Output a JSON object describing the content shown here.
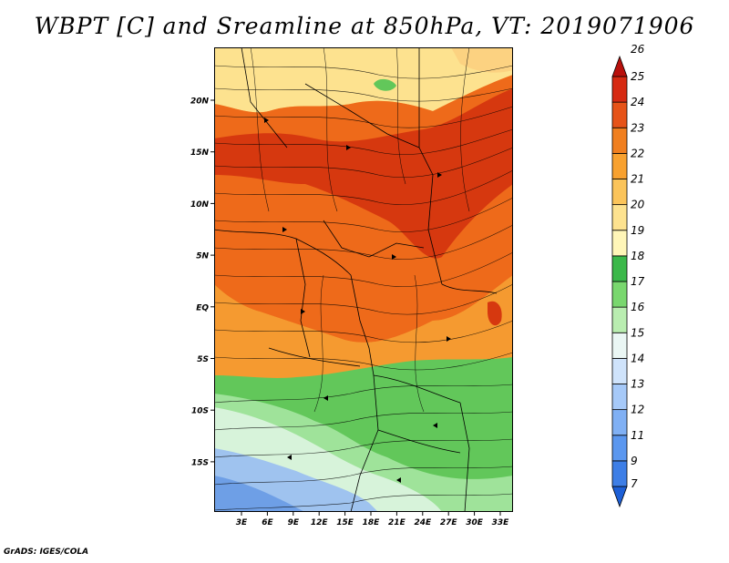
{
  "title": "WBPT [C] and Sreamline at 850hPa, VT: 2019071906",
  "footer": "GrADS: IGES/COLA",
  "lat_labels": [
    "20N",
    "15N",
    "10N",
    "5N",
    "EQ",
    "5S",
    "10S",
    "15S"
  ],
  "lon_labels": [
    "3E",
    "6E",
    "9E",
    "12E",
    "15E",
    "18E",
    "21E",
    "24E",
    "27E",
    "30E",
    "33E"
  ],
  "colorbar": {
    "labels": [
      "7",
      "9",
      "11",
      "12",
      "13",
      "14",
      "15",
      "16",
      "17",
      "18",
      "19",
      "20",
      "21",
      "22",
      "23",
      "24",
      "25",
      "26"
    ],
    "colors": [
      "#1d5fd6",
      "#3d7ee6",
      "#5b97ef",
      "#80b0f4",
      "#a6c9f8",
      "#cfe3fb",
      "#eaf6f4",
      "#b9edb0",
      "#79d76e",
      "#3bb84a",
      "#fff6b8",
      "#fde28f",
      "#fbc45a",
      "#f8a12f",
      "#f07f1f",
      "#e65318",
      "#d62a12",
      "#b8100c"
    ]
  },
  "field_colors": {
    "hot": "#d6380f",
    "warm": "#ee6a1a",
    "mild": "#f59a30",
    "tan": "#fcd281",
    "pale": "#fbe8a6",
    "green": "#62c75a",
    "lightgreen": "#9fe39a",
    "mint": "#d7f3da",
    "blue": "#9fc3ef",
    "deepblue": "#6e9fe6"
  }
}
